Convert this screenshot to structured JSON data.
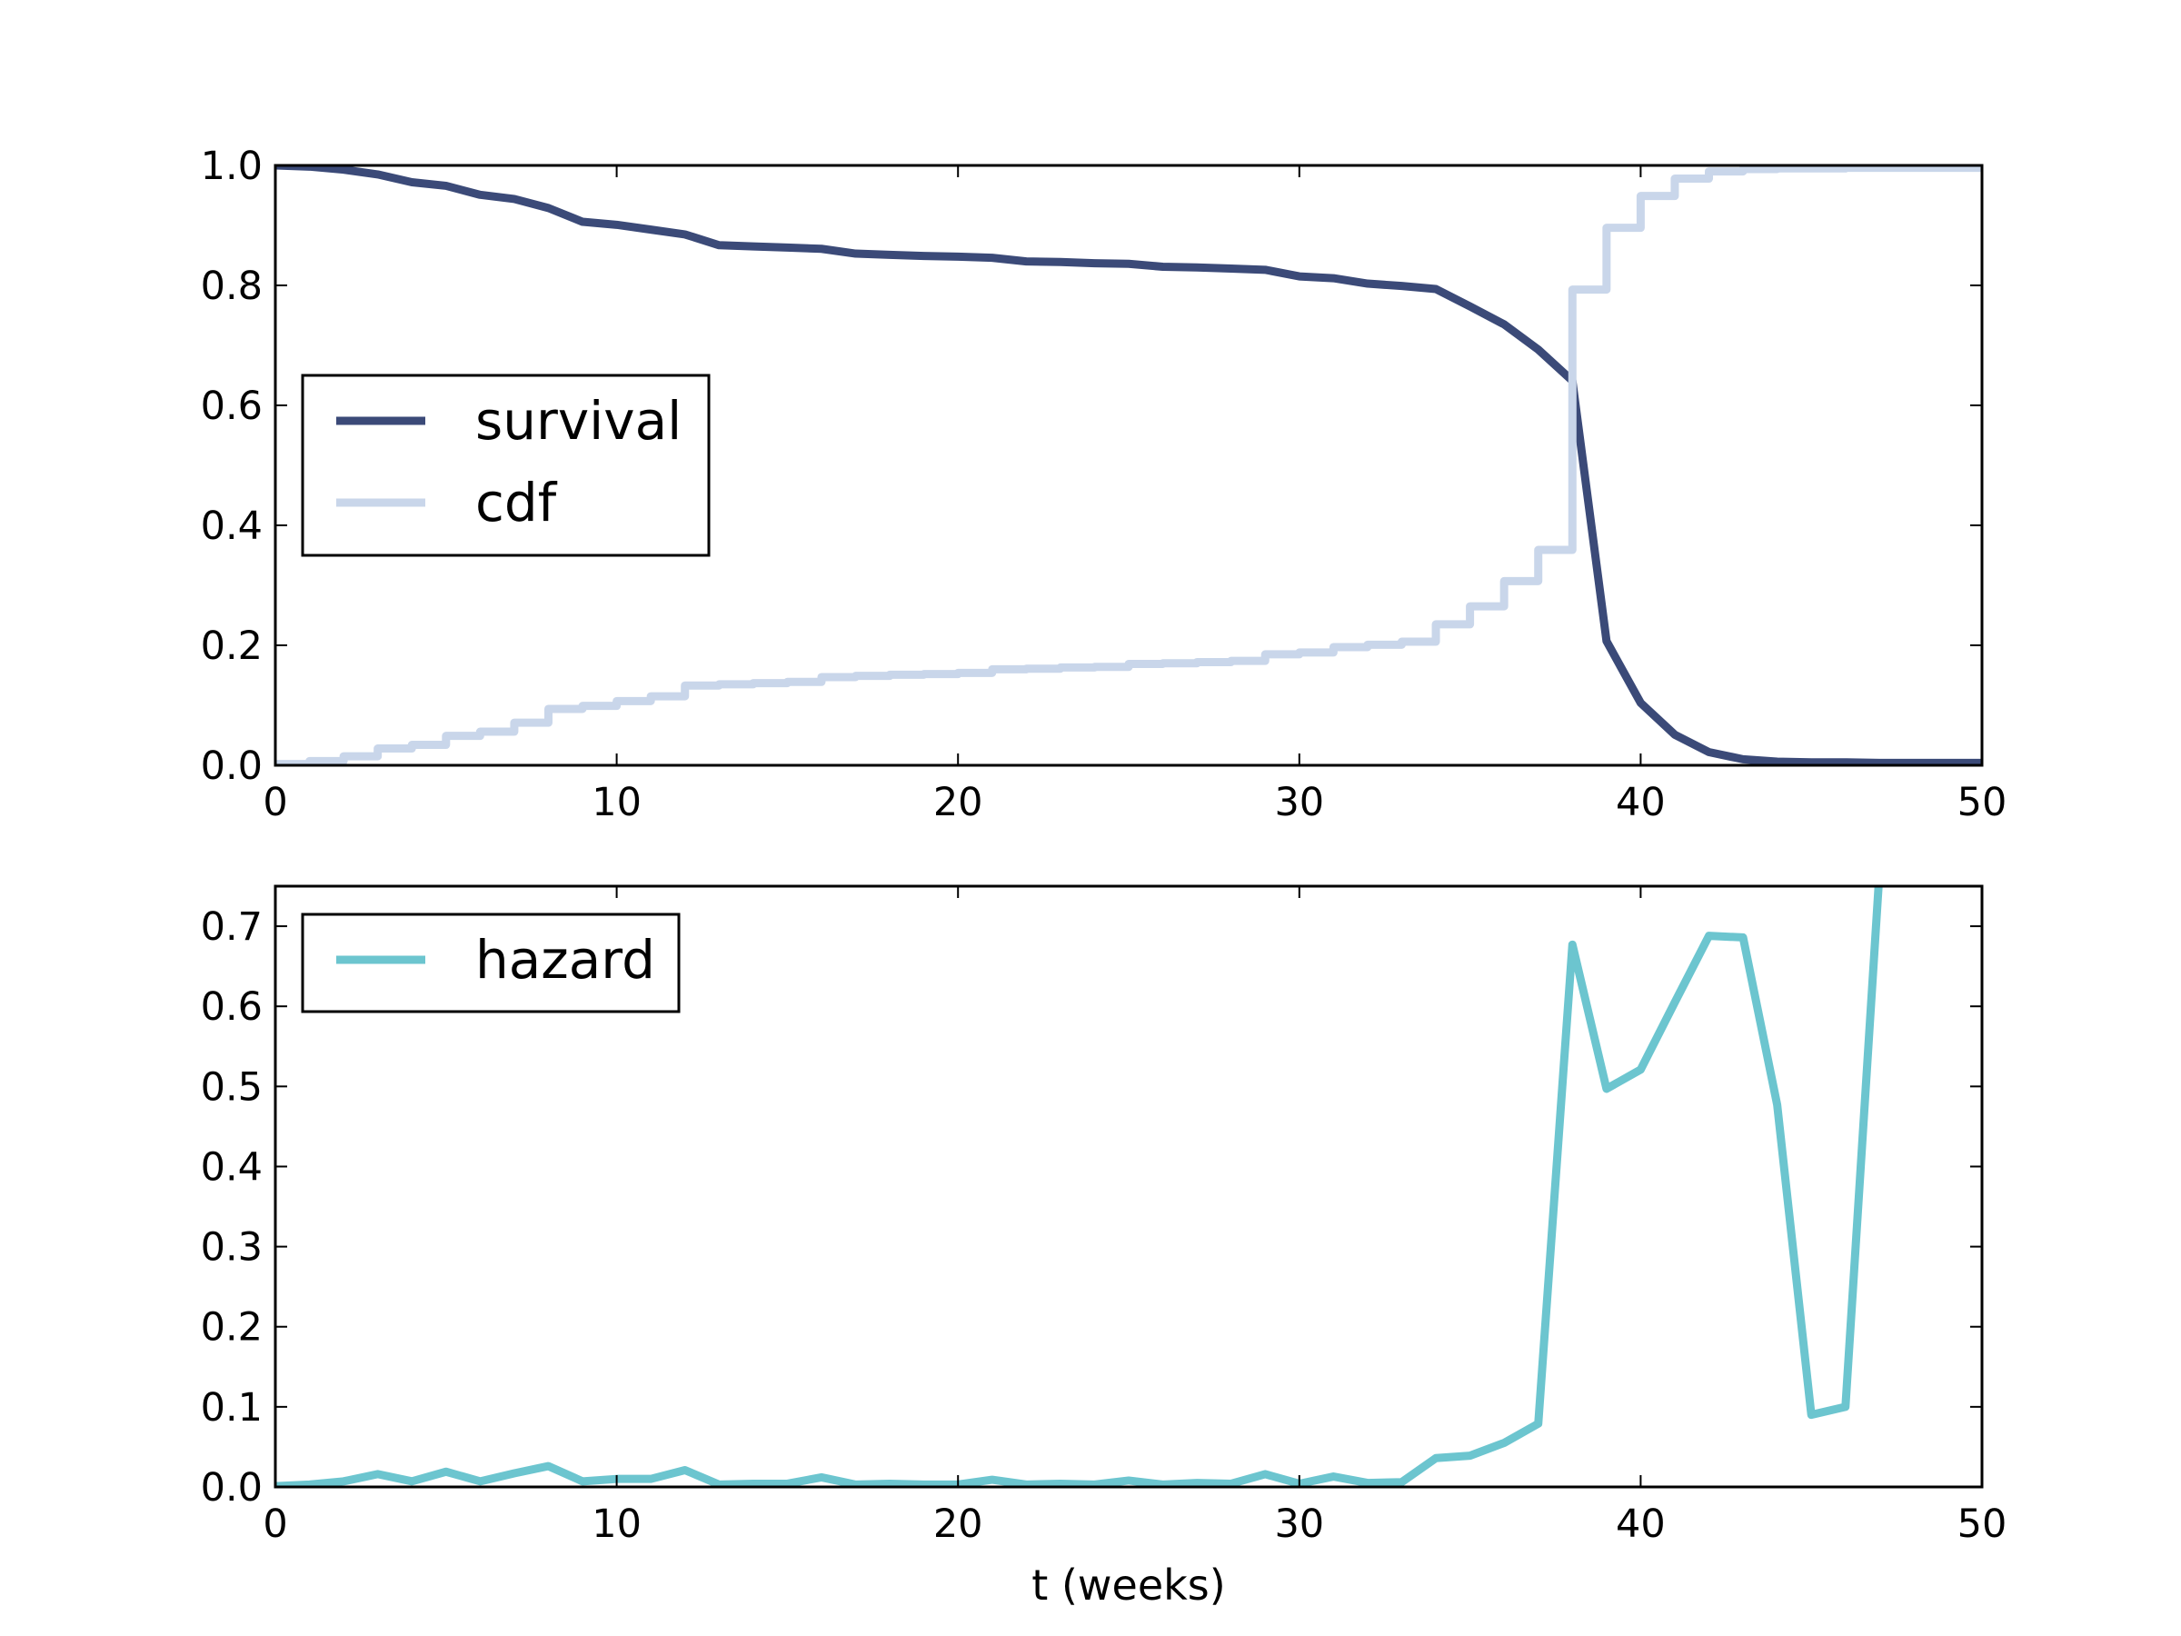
{
  "chart_data": [
    {
      "type": "line",
      "title": "",
      "xlabel": "",
      "ylabel": "",
      "xlim": [
        0,
        50
      ],
      "ylim": [
        0,
        1.0
      ],
      "xticks": [
        "0",
        "10",
        "20",
        "30",
        "40",
        "50"
      ],
      "yticks": [
        "0.0",
        "0.2",
        "0.4",
        "0.6",
        "0.8",
        "1.0"
      ],
      "grid": false,
      "legend_position": "center-left",
      "series": [
        {
          "name": "survival",
          "style": "line",
          "color": "#3b4a78",
          "x": [
            0,
            1,
            2,
            3,
            4,
            5,
            6,
            7,
            8,
            9,
            10,
            11,
            12,
            13,
            14,
            15,
            16,
            17,
            18,
            19,
            20,
            21,
            22,
            23,
            24,
            25,
            26,
            27,
            28,
            29,
            30,
            31,
            32,
            33,
            34,
            35,
            36,
            37,
            38,
            39,
            40,
            41,
            42,
            43,
            44,
            45,
            46,
            47,
            48,
            49,
            50
          ],
          "y": [
            1.0,
            0.998,
            0.993,
            0.985,
            0.972,
            0.966,
            0.951,
            0.944,
            0.929,
            0.906,
            0.901,
            0.893,
            0.885,
            0.867,
            0.865,
            0.863,
            0.861,
            0.853,
            0.851,
            0.849,
            0.848,
            0.846,
            0.84,
            0.839,
            0.837,
            0.836,
            0.831,
            0.83,
            0.828,
            0.826,
            0.815,
            0.812,
            0.803,
            0.799,
            0.794,
            0.765,
            0.735,
            0.693,
            0.641,
            0.207,
            0.104,
            0.051,
            0.022,
            0.01,
            0.006,
            0.005,
            0.005,
            0.004,
            0.004,
            0.004,
            0.004
          ]
        },
        {
          "name": "cdf",
          "style": "step",
          "color": "#c9d6ea",
          "x": [
            0,
            1,
            2,
            3,
            4,
            5,
            6,
            7,
            8,
            9,
            10,
            11,
            12,
            13,
            14,
            15,
            16,
            17,
            18,
            19,
            20,
            21,
            22,
            23,
            24,
            25,
            26,
            27,
            28,
            29,
            30,
            31,
            32,
            33,
            34,
            35,
            36,
            37,
            38,
            39,
            40,
            41,
            42,
            43,
            44,
            45,
            46,
            47,
            48,
            49,
            50
          ],
          "y": [
            0.0,
            0.002,
            0.007,
            0.015,
            0.028,
            0.034,
            0.049,
            0.056,
            0.071,
            0.094,
            0.099,
            0.107,
            0.115,
            0.133,
            0.135,
            0.137,
            0.139,
            0.147,
            0.149,
            0.151,
            0.152,
            0.154,
            0.16,
            0.161,
            0.163,
            0.164,
            0.169,
            0.17,
            0.172,
            0.174,
            0.185,
            0.188,
            0.197,
            0.201,
            0.206,
            0.235,
            0.265,
            0.307,
            0.359,
            0.793,
            0.896,
            0.949,
            0.978,
            0.99,
            0.994,
            0.995,
            0.995,
            0.996,
            0.996,
            0.996,
            0.996
          ]
        }
      ]
    },
    {
      "type": "line",
      "title": "",
      "xlabel": "t (weeks)",
      "ylabel": "",
      "xlim": [
        0,
        50
      ],
      "ylim": [
        0,
        0.75
      ],
      "xticks": [
        "0",
        "10",
        "20",
        "30",
        "40",
        "50"
      ],
      "yticks": [
        "0.0",
        "0.1",
        "0.2",
        "0.3",
        "0.4",
        "0.5",
        "0.6",
        "0.7"
      ],
      "grid": false,
      "legend_position": "top-left",
      "series": [
        {
          "name": "hazard",
          "style": "line",
          "color": "#6cc5cf",
          "x": [
            0,
            1,
            2,
            3,
            4,
            5,
            6,
            7,
            8,
            9,
            10,
            11,
            12,
            13,
            14,
            15,
            16,
            17,
            18,
            19,
            20,
            21,
            22,
            23,
            24,
            25,
            26,
            27,
            28,
            29,
            30,
            31,
            32,
            33,
            34,
            35,
            36,
            37,
            38,
            39,
            40,
            41,
            42,
            43,
            44,
            45,
            46,
            47
          ],
          "y": [
            0.001,
            0.003,
            0.007,
            0.016,
            0.007,
            0.019,
            0.007,
            0.017,
            0.026,
            0.007,
            0.01,
            0.01,
            0.021,
            0.003,
            0.004,
            0.004,
            0.012,
            0.003,
            0.004,
            0.003,
            0.003,
            0.009,
            0.003,
            0.004,
            0.003,
            0.008,
            0.003,
            0.005,
            0.004,
            0.016,
            0.004,
            0.013,
            0.005,
            0.006,
            0.036,
            0.039,
            0.055,
            0.079,
            0.677,
            0.497,
            0.521,
            0.605,
            0.688,
            0.686,
            0.477,
            0.09,
            0.1,
            0.77
          ]
        }
      ]
    }
  ]
}
